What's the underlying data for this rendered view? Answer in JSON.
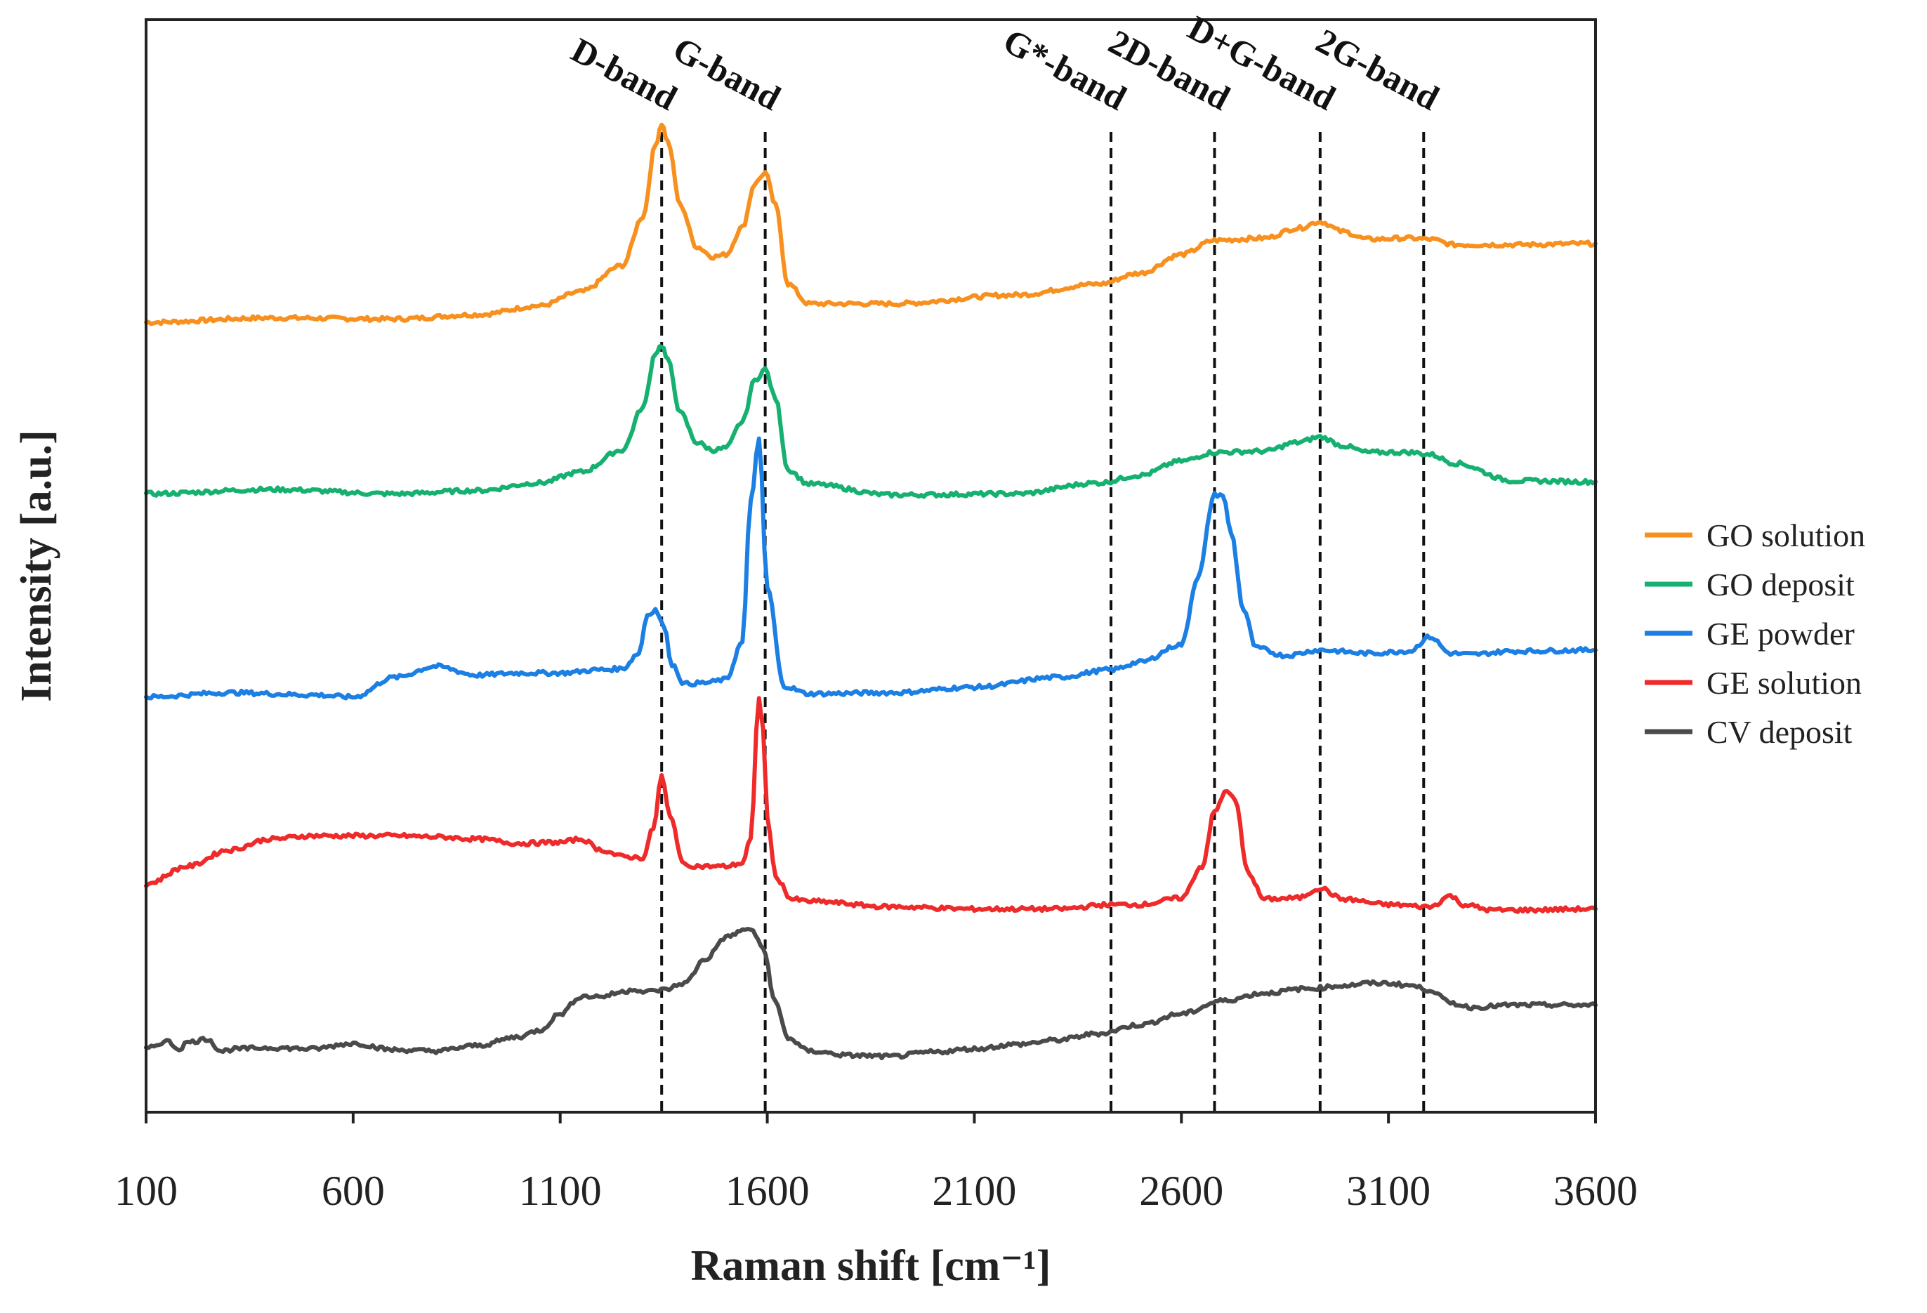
{
  "chart_data": {
    "type": "line",
    "title": "",
    "xlabel": "Raman shift [cm⁻¹]",
    "ylabel": "Intensity [a.u.]",
    "xlim": [
      100,
      3600
    ],
    "ylim": [
      0,
      100
    ],
    "y_ticks_shown": false,
    "x_ticks": [
      100,
      600,
      1100,
      1600,
      2100,
      2600,
      3100,
      3600
    ],
    "x_tick_labels": [
      "100",
      "600",
      "1100",
      "1600",
      "2100",
      "2600",
      "3100",
      "3600"
    ],
    "grid": false,
    "legend_position": "right",
    "band_markers": [
      {
        "name": "D-band",
        "x": 1345
      },
      {
        "name": "G-band",
        "x": 1595
      },
      {
        "name": "G*-band",
        "x": 2430
      },
      {
        "name": "2D-band",
        "x": 2680
      },
      {
        "name": "D+G-band",
        "x": 2935
      },
      {
        "name": "2G-band",
        "x": 3185
      }
    ],
    "series": [
      {
        "name": "GO solution",
        "color": "#F7901E",
        "x": [
          100,
          400,
          700,
          900,
          1050,
          1150,
          1250,
          1300,
          1330,
          1345,
          1360,
          1390,
          1430,
          1470,
          1500,
          1540,
          1570,
          1595,
          1620,
          1650,
          1700,
          1900,
          2200,
          2400,
          2500,
          2600,
          2680,
          2800,
          2880,
          2935,
          2990,
          3050,
          3150,
          3200,
          3260,
          3400,
          3600
        ],
        "y": [
          72.3,
          72.7,
          72.6,
          73.0,
          73.8,
          75.1,
          77.5,
          82.0,
          88.5,
          90.5,
          88.8,
          83.0,
          79.2,
          78.3,
          78.5,
          81.0,
          85.0,
          86.0,
          83.0,
          75.8,
          74.0,
          74.0,
          74.8,
          75.8,
          76.8,
          78.5,
          79.8,
          80.0,
          80.9,
          81.5,
          80.6,
          79.9,
          80.0,
          79.9,
          79.4,
          79.4,
          79.5
        ]
      },
      {
        "name": "GO deposit",
        "color": "#16B071",
        "x": [
          100,
          400,
          700,
          900,
          1050,
          1150,
          1250,
          1300,
          1330,
          1345,
          1360,
          1390,
          1430,
          1470,
          1500,
          1540,
          1570,
          1595,
          1620,
          1650,
          1700,
          1900,
          2200,
          2400,
          2500,
          2600,
          2680,
          2800,
          2880,
          2935,
          2990,
          3050,
          3150,
          3200,
          3260,
          3400,
          3600
        ],
        "y": [
          56.6,
          57.0,
          56.6,
          56.9,
          57.6,
          58.6,
          60.6,
          64.5,
          69.5,
          70.2,
          68.8,
          64.0,
          61.3,
          60.6,
          60.8,
          63.2,
          67.0,
          68.0,
          65.3,
          58.8,
          57.5,
          56.5,
          56.6,
          57.6,
          58.3,
          59.6,
          60.4,
          60.5,
          61.3,
          61.8,
          61.0,
          60.4,
          60.4,
          60.2,
          59.4,
          57.8,
          57.7
        ]
      },
      {
        "name": "GE powder",
        "color": "#1B7FE3",
        "x": [
          100,
          300,
          500,
          600,
          700,
          800,
          900,
          1000,
          1100,
          1200,
          1250,
          1290,
          1310,
          1330,
          1350,
          1370,
          1400,
          1450,
          1500,
          1540,
          1560,
          1580,
          1600,
          1640,
          1700,
          1900,
          2100,
          2300,
          2430,
          2500,
          2600,
          2640,
          2680,
          2700,
          2720,
          2750,
          2780,
          2850,
          2935,
          3050,
          3150,
          3200,
          3250,
          3300,
          3400,
          3600
        ],
        "y": [
          38.0,
          38.4,
          38.2,
          38.0,
          39.8,
          40.8,
          40.0,
          40.2,
          40.2,
          40.5,
          40.6,
          42.0,
          45.5,
          46.0,
          44.5,
          41.0,
          39.2,
          39.3,
          39.6,
          43.0,
          56.0,
          61.5,
          48.0,
          39.0,
          38.3,
          38.4,
          38.9,
          39.8,
          40.5,
          41.2,
          42.8,
          49.0,
          56.5,
          56.5,
          53.0,
          46.0,
          42.5,
          41.8,
          42.3,
          42.0,
          42.2,
          43.5,
          42.0,
          41.9,
          42.2,
          42.3
        ]
      },
      {
        "name": "GE solution",
        "color": "#EE2A2A",
        "x": [
          100,
          200,
          300,
          400,
          500,
          600,
          700,
          800,
          900,
          1000,
          1100,
          1150,
          1200,
          1250,
          1300,
          1325,
          1345,
          1365,
          1400,
          1450,
          1500,
          1540,
          1560,
          1580,
          1590,
          1600,
          1620,
          1660,
          1700,
          1900,
          2100,
          2300,
          2430,
          2500,
          2600,
          2650,
          2680,
          2710,
          2730,
          2760,
          2800,
          2880,
          2935,
          2990,
          3100,
          3200,
          3250,
          3280,
          3350,
          3400,
          3600
        ],
        "y": [
          20.9,
          22.5,
          24.0,
          25.0,
          25.3,
          25.3,
          25.3,
          25.2,
          25.0,
          24.6,
          24.7,
          25.0,
          24.0,
          23.4,
          23.3,
          26.0,
          30.8,
          27.0,
          22.6,
          22.5,
          22.5,
          22.8,
          25.0,
          38.0,
          35.0,
          27.0,
          21.5,
          19.5,
          19.3,
          18.8,
          18.6,
          18.6,
          19.0,
          19.0,
          19.6,
          22.5,
          27.5,
          29.5,
          28.5,
          22.0,
          19.5,
          19.6,
          20.5,
          19.5,
          19.0,
          18.8,
          19.8,
          19.0,
          18.5,
          18.5,
          18.6
        ]
      },
      {
        "name": "CV deposit",
        "color": "#4A4A4A",
        "x": [
          100,
          150,
          180,
          200,
          250,
          280,
          320,
          400,
          500,
          600,
          700,
          800,
          900,
          1000,
          1050,
          1100,
          1150,
          1200,
          1250,
          1280,
          1300,
          1350,
          1400,
          1450,
          1500,
          1540,
          1560,
          1590,
          1620,
          1650,
          1700,
          1800,
          1900,
          2000,
          2100,
          2200,
          2300,
          2400,
          2500,
          2600,
          2700,
          2800,
          2900,
          3000,
          3050,
          3100,
          3150,
          3200,
          3250,
          3300,
          3400,
          3500,
          3600
        ],
        "y": [
          5.8,
          6.5,
          5.8,
          6.4,
          6.7,
          5.6,
          5.8,
          5.9,
          5.8,
          6.3,
          5.7,
          5.6,
          6.1,
          6.9,
          7.5,
          9.0,
          10.6,
          10.6,
          11.0,
          11.3,
          11.0,
          11.2,
          11.8,
          14.0,
          16.0,
          16.6,
          16.8,
          15.0,
          10.0,
          6.8,
          5.6,
          5.2,
          5.1,
          5.5,
          5.8,
          6.2,
          6.6,
          7.2,
          8.0,
          9.0,
          10.2,
          10.9,
          11.3,
          11.6,
          11.8,
          11.8,
          11.6,
          11.2,
          10.0,
          9.6,
          9.8,
          9.8,
          9.8
        ]
      }
    ]
  }
}
